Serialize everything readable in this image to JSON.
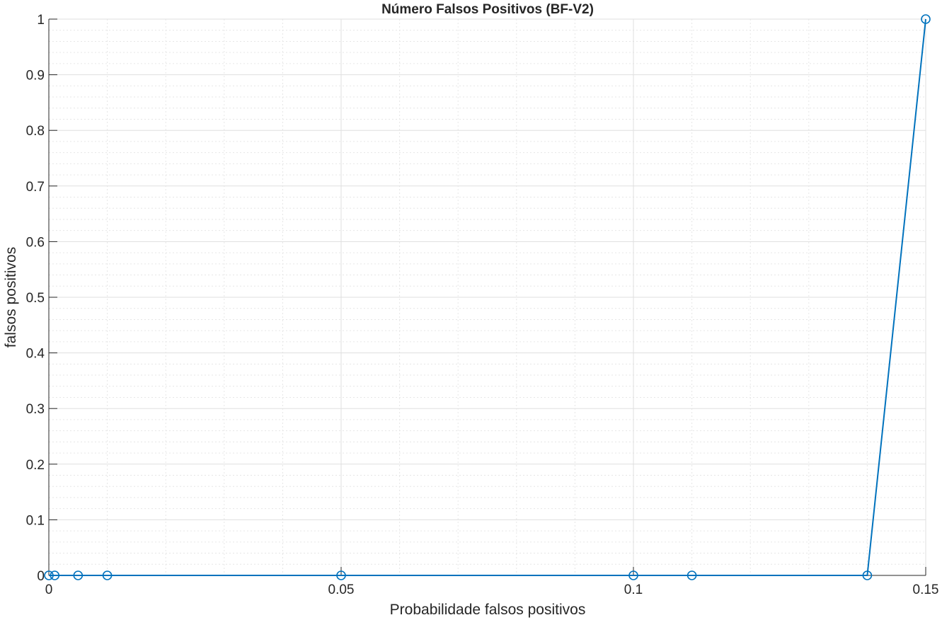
{
  "chart_data": {
    "type": "line",
    "title": "Número Falsos Positivos (BF-V2)",
    "xlabel": "Probabilidade falsos positivos",
    "ylabel": "falsos positivos",
    "xlim": [
      0,
      0.15
    ],
    "ylim": [
      0,
      1
    ],
    "xticks": [
      0,
      0.05,
      0.1,
      0.15
    ],
    "xtick_labels": [
      "0",
      "0.05",
      "0.1",
      "0.15"
    ],
    "yticks": [
      0,
      0.1,
      0.2,
      0.3,
      0.4,
      0.5,
      0.6,
      0.7,
      0.8,
      0.9,
      1
    ],
    "ytick_labels": [
      "0",
      "0.1",
      "0.2",
      "0.3",
      "0.4",
      "0.5",
      "0.6",
      "0.7",
      "0.8",
      "0.9",
      "1"
    ],
    "grid": true,
    "minor_grid": true,
    "series": [
      {
        "x": [
          0,
          0.001,
          0.005,
          0.01,
          0.05,
          0.1,
          0.11,
          0.14,
          0.15
        ],
        "y": [
          0,
          0,
          0,
          0,
          0,
          0,
          0,
          0,
          1
        ],
        "marker": "circle",
        "color": "#0072BD"
      }
    ]
  }
}
